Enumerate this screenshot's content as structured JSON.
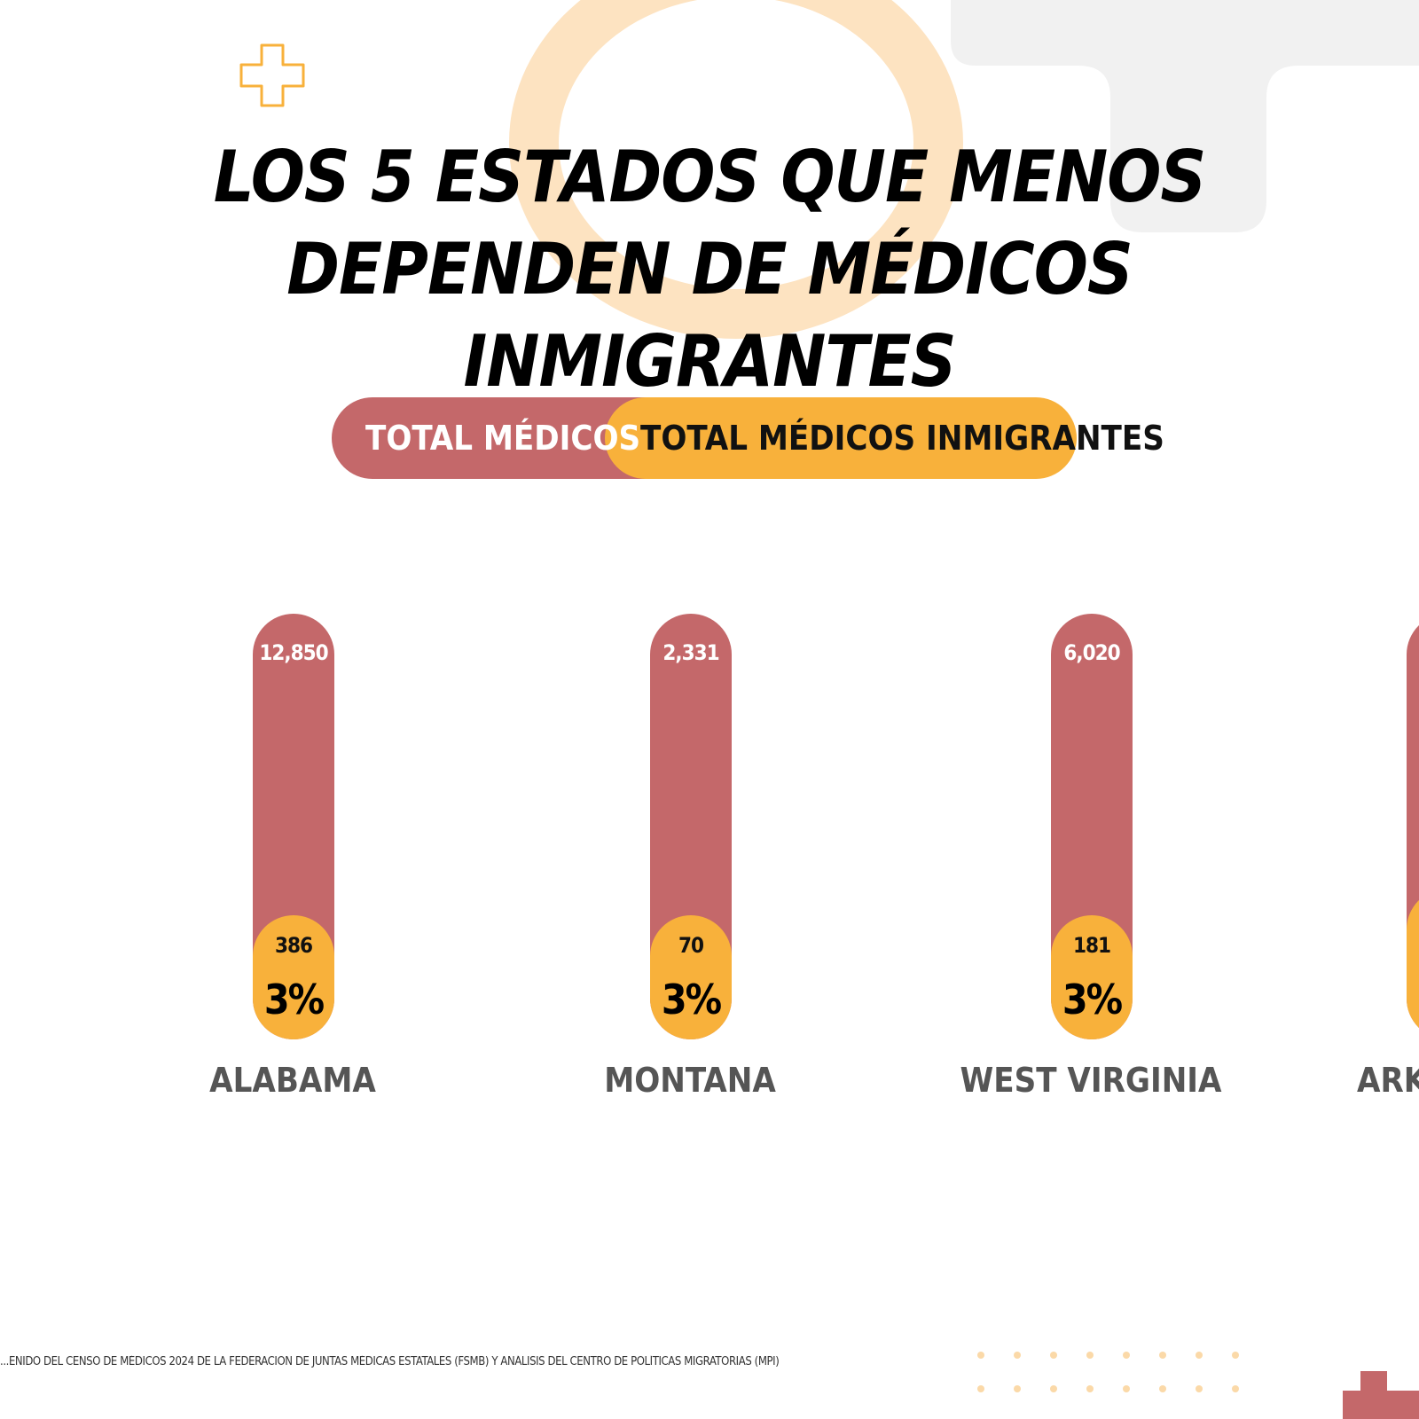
{
  "chart_data": {
    "type": "bar",
    "title": "LOS 5 ESTADOS QUE MENOS DEPENDEN DE MÉDICOS INMIGRANTES",
    "legend": [
      "TOTAL MÉDICOS",
      "TOTAL MÉDICOS INMIGRANTES"
    ],
    "categories": [
      "ALABAMA",
      "MONTANA",
      "WEST VIRGINIA",
      "ARK"
    ],
    "series": [
      {
        "name": "TOTAL MÉDICOS",
        "values": [
          "12,850",
          "2,331",
          "6,020",
          ""
        ]
      },
      {
        "name": "TOTAL MÉDICOS INMIGRANTES",
        "values": [
          "386",
          "70",
          "181",
          ""
        ]
      }
    ],
    "percentages": [
      "3%",
      "3%",
      "3%",
      ""
    ],
    "colors": {
      "total": "#c4686a",
      "immigrant": "#f8b13b"
    }
  },
  "source_text": "...ENIDO DEL CENSO DE MÉDICOS 2024 DE LA FEDERACIÓN DE JUNTAS MÉDICAS ESTATALES (FSMB) Y ANÁLISIS DEL CENTRO DE POLÍTICAS MIGRATORIAS (MPI)"
}
